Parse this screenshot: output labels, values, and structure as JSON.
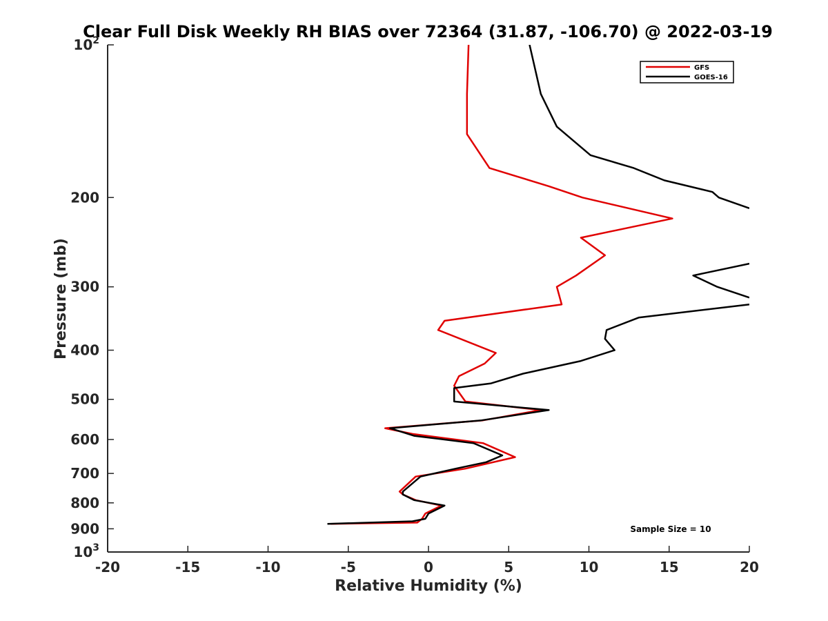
{
  "chart_data": {
    "type": "line",
    "title": "Clear Full Disk Weekly RH BIAS over 72364 (31.87, -106.70) @ 2022-03-19",
    "xlabel": "Relative Humidity (%)",
    "ylabel": "Pressure (mb)",
    "xlim": [
      -20,
      20
    ],
    "ylim": [
      100,
      1000
    ],
    "y_scale": "log",
    "y_reversed": true,
    "grid": false,
    "legend_position": "top-right",
    "x_ticks": [
      {
        "value": -20,
        "label": "-20"
      },
      {
        "value": -15,
        "label": "-15"
      },
      {
        "value": -10,
        "label": "-10"
      },
      {
        "value": -5,
        "label": "-5"
      },
      {
        "value": 0,
        "label": "0"
      },
      {
        "value": 5,
        "label": "5"
      },
      {
        "value": 10,
        "label": "10"
      },
      {
        "value": 15,
        "label": "15"
      },
      {
        "value": 20,
        "label": "20"
      }
    ],
    "y_ticks": [
      {
        "value": 100,
        "base": "10",
        "exp": "2"
      },
      {
        "value": 200,
        "label": "200"
      },
      {
        "value": 300,
        "label": "300"
      },
      {
        "value": 400,
        "label": "400"
      },
      {
        "value": 500,
        "label": "500"
      },
      {
        "value": 600,
        "label": "600"
      },
      {
        "value": 700,
        "label": "700"
      },
      {
        "value": 800,
        "label": "800"
      },
      {
        "value": 900,
        "label": "900"
      },
      {
        "value": 1000,
        "base": "10",
        "exp": "3"
      }
    ],
    "series": [
      {
        "name": "GFS",
        "color": "#e00000",
        "points": [
          [
            2.5,
            100
          ],
          [
            2.4,
            125
          ],
          [
            2.4,
            150
          ],
          [
            3.8,
            175
          ],
          [
            7.5,
            190
          ],
          [
            9.6,
            200
          ],
          [
            15.2,
            220
          ],
          [
            9.5,
            240
          ],
          [
            11.0,
            260
          ],
          [
            9.2,
            285
          ],
          [
            8.0,
            300
          ],
          [
            8.3,
            325
          ],
          [
            1.0,
            350
          ],
          [
            0.6,
            365
          ],
          [
            4.2,
            405
          ],
          [
            3.5,
            425
          ],
          [
            1.9,
            450
          ],
          [
            1.6,
            470
          ],
          [
            2.3,
            505
          ],
          [
            7.0,
            525
          ],
          [
            3.4,
            550
          ],
          [
            -2.7,
            570
          ],
          [
            -1.0,
            585
          ],
          [
            3.4,
            610
          ],
          [
            5.4,
            650
          ],
          [
            2.3,
            685
          ],
          [
            -0.8,
            710
          ],
          [
            -1.8,
            760
          ],
          [
            -1.6,
            770
          ],
          [
            -0.8,
            790
          ],
          [
            0.8,
            810
          ],
          [
            -0.2,
            840
          ],
          [
            -0.4,
            860
          ],
          [
            -0.7,
            875
          ],
          [
            -6.1,
            880
          ]
        ]
      },
      {
        "name": "GOES-16",
        "color": "#000000",
        "points": [
          [
            6.3,
            100
          ],
          [
            7.0,
            125
          ],
          [
            8.0,
            145
          ],
          [
            10.1,
            165
          ],
          [
            12.8,
            175
          ],
          [
            14.7,
            185
          ],
          [
            17.7,
            195
          ],
          [
            18.1,
            200
          ],
          [
            20.0,
            210
          ],
          [
            null,
            null
          ],
          [
            20.0,
            270
          ],
          [
            16.5,
            285
          ],
          [
            18.0,
            300
          ],
          [
            20.0,
            315
          ],
          [
            null,
            null
          ],
          [
            20.0,
            325
          ],
          [
            13.1,
            345
          ],
          [
            11.1,
            365
          ],
          [
            11.0,
            380
          ],
          [
            11.6,
            400
          ],
          [
            9.5,
            420
          ],
          [
            5.9,
            445
          ],
          [
            3.9,
            465
          ],
          [
            1.6,
            475
          ],
          [
            1.6,
            505
          ],
          [
            7.5,
            525
          ],
          [
            3.3,
            550
          ],
          [
            -2.4,
            570
          ],
          [
            -0.9,
            590
          ],
          [
            2.8,
            610
          ],
          [
            4.6,
            645
          ],
          [
            3.6,
            665
          ],
          [
            1.7,
            685
          ],
          [
            -0.5,
            710
          ],
          [
            -1.6,
            760
          ],
          [
            -1.6,
            770
          ],
          [
            -0.9,
            790
          ],
          [
            1.0,
            810
          ],
          [
            0.0,
            840
          ],
          [
            -0.2,
            860
          ],
          [
            -1.0,
            870
          ],
          [
            -6.3,
            880
          ]
        ]
      }
    ],
    "annotations": [
      {
        "text": "Sample Size = 10"
      }
    ]
  }
}
